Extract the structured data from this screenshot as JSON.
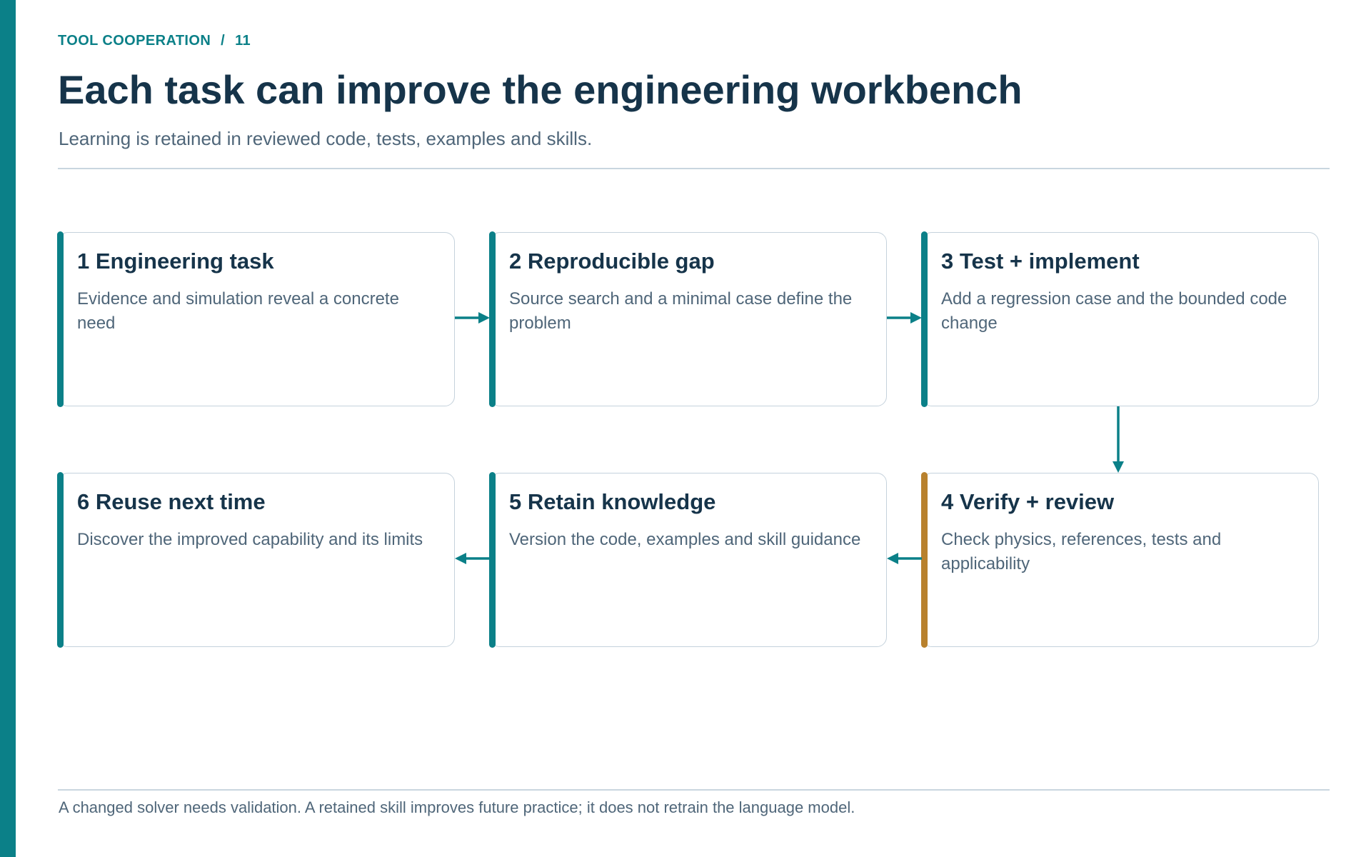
{
  "header": {
    "section": "TOOL COOPERATION",
    "separator": "/",
    "page_number": "11",
    "title": "Each task can improve the engineering workbench",
    "subtitle": "Learning is retained in reviewed code, tests, examples and skills."
  },
  "steps": [
    {
      "title": "1 Engineering task",
      "description": "Evidence and simulation reveal a concrete need"
    },
    {
      "title": "2 Reproducible gap",
      "description": "Source search and a minimal case define the problem"
    },
    {
      "title": "3 Test + implement",
      "description": "Add a regression case and the bounded code change"
    },
    {
      "title": "4 Verify + review",
      "description": "Check physics, references, tests and applicability"
    },
    {
      "title": "5 Retain knowledge",
      "description": "Version the code, examples and skill guidance"
    },
    {
      "title": "6 Reuse next time",
      "description": "Discover the improved capability and its limits"
    }
  ],
  "colors": {
    "accent": "#0b8088",
    "review_accent": "#b8812d",
    "heading": "#16344a",
    "body_text": "#4f6679",
    "border": "#c5d2dc"
  },
  "footer": {
    "note": "A changed solver needs validation. A retained skill improves future practice; it does not retrain the language model."
  }
}
